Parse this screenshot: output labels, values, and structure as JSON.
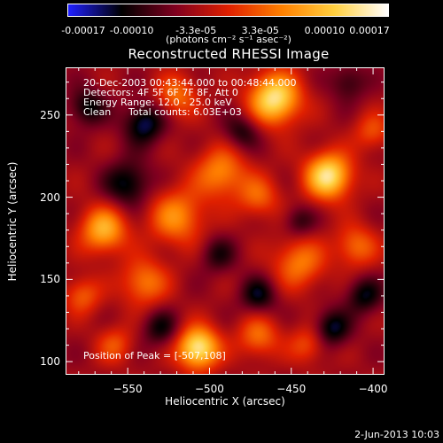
{
  "colorbar": {
    "ticks": [
      "-0.00017",
      "-0.00010",
      "-3.3e-05",
      "3.3e-05",
      "0.00010",
      "0.00017"
    ],
    "units": "(photons cm⁻² s⁻¹ asec⁻²)",
    "stops": [
      "#2020ff",
      "#000000",
      "#800020",
      "#e02000",
      "#ff8000",
      "#ffd040",
      "#ffffff"
    ]
  },
  "chart_data": {
    "type": "heatmap",
    "title": "Reconstructed RHESSI Image",
    "xlabel": "Heliocentric X (arcsec)",
    "ylabel": "Heliocentric Y (arcsec)",
    "xlim": [
      -588,
      -393
    ],
    "ylim": [
      92,
      279
    ],
    "xticks": [
      -550,
      -500,
      -450,
      -400
    ],
    "yticks": [
      100,
      150,
      200,
      250
    ],
    "xtick_labels": [
      "−550",
      "−500",
      "−450",
      "−400"
    ],
    "ytick_labels": [
      "100",
      "150",
      "200",
      "250"
    ],
    "peak": [
      -507,
      108
    ],
    "blobs": [
      {
        "x": -507,
        "y": 108,
        "a": 1.0,
        "s": 9
      },
      {
        "x": -460,
        "y": 260,
        "a": 0.95,
        "s": 11
      },
      {
        "x": -427,
        "y": 213,
        "a": 0.95,
        "s": 10
      },
      {
        "x": -565,
        "y": 180,
        "a": 0.7,
        "s": 10
      },
      {
        "x": -520,
        "y": 188,
        "a": 0.55,
        "s": 12
      },
      {
        "x": -540,
        "y": 148,
        "a": 0.5,
        "s": 10
      },
      {
        "x": -493,
        "y": 215,
        "a": 0.55,
        "s": 11
      },
      {
        "x": -445,
        "y": 160,
        "a": 0.5,
        "s": 11
      },
      {
        "x": -410,
        "y": 170,
        "a": 0.45,
        "s": 9
      },
      {
        "x": -520,
        "y": 262,
        "a": 0.45,
        "s": 9
      },
      {
        "x": -470,
        "y": 115,
        "a": 0.45,
        "s": 9
      },
      {
        "x": -578,
        "y": 140,
        "a": 0.4,
        "s": 8
      },
      {
        "x": -440,
        "y": 110,
        "a": 0.35,
        "s": 8
      },
      {
        "x": -558,
        "y": 110,
        "a": 0.35,
        "s": 8
      },
      {
        "x": -400,
        "y": 240,
        "a": 0.35,
        "s": 8
      },
      {
        "x": -470,
        "y": 200,
        "a": 0.4,
        "s": 9
      },
      {
        "x": -550,
        "y": 208,
        "a": -0.45,
        "s": 10
      },
      {
        "x": -540,
        "y": 245,
        "a": -0.5,
        "s": 9
      },
      {
        "x": -575,
        "y": 255,
        "a": -0.4,
        "s": 8
      },
      {
        "x": -480,
        "y": 240,
        "a": -0.35,
        "s": 8
      },
      {
        "x": -470,
        "y": 140,
        "a": -0.4,
        "s": 8
      },
      {
        "x": -425,
        "y": 120,
        "a": -0.45,
        "s": 8
      },
      {
        "x": -405,
        "y": 140,
        "a": -0.4,
        "s": 8
      },
      {
        "x": -445,
        "y": 185,
        "a": -0.3,
        "s": 7
      },
      {
        "x": -530,
        "y": 120,
        "a": -0.35,
        "s": 8
      },
      {
        "x": -495,
        "y": 165,
        "a": -0.3,
        "s": 8
      },
      {
        "x": -415,
        "y": 270,
        "a": -0.3,
        "s": 8
      }
    ]
  },
  "annotations": {
    "time_range": "20-Dec-2003 00:43:44.000 to 00:48:44.000",
    "detectors": "Detectors: 4F 5F 6F 7F 8F, Att 0",
    "energy": "Energy Range: 12.0 - 25.0 keV",
    "method": "Clean",
    "total_counts": "Total counts: 6.03E+03",
    "peak_label": "Position of Peak = [-507,108]"
  },
  "footer": {
    "date": "2-Jun-2013 10:03"
  }
}
